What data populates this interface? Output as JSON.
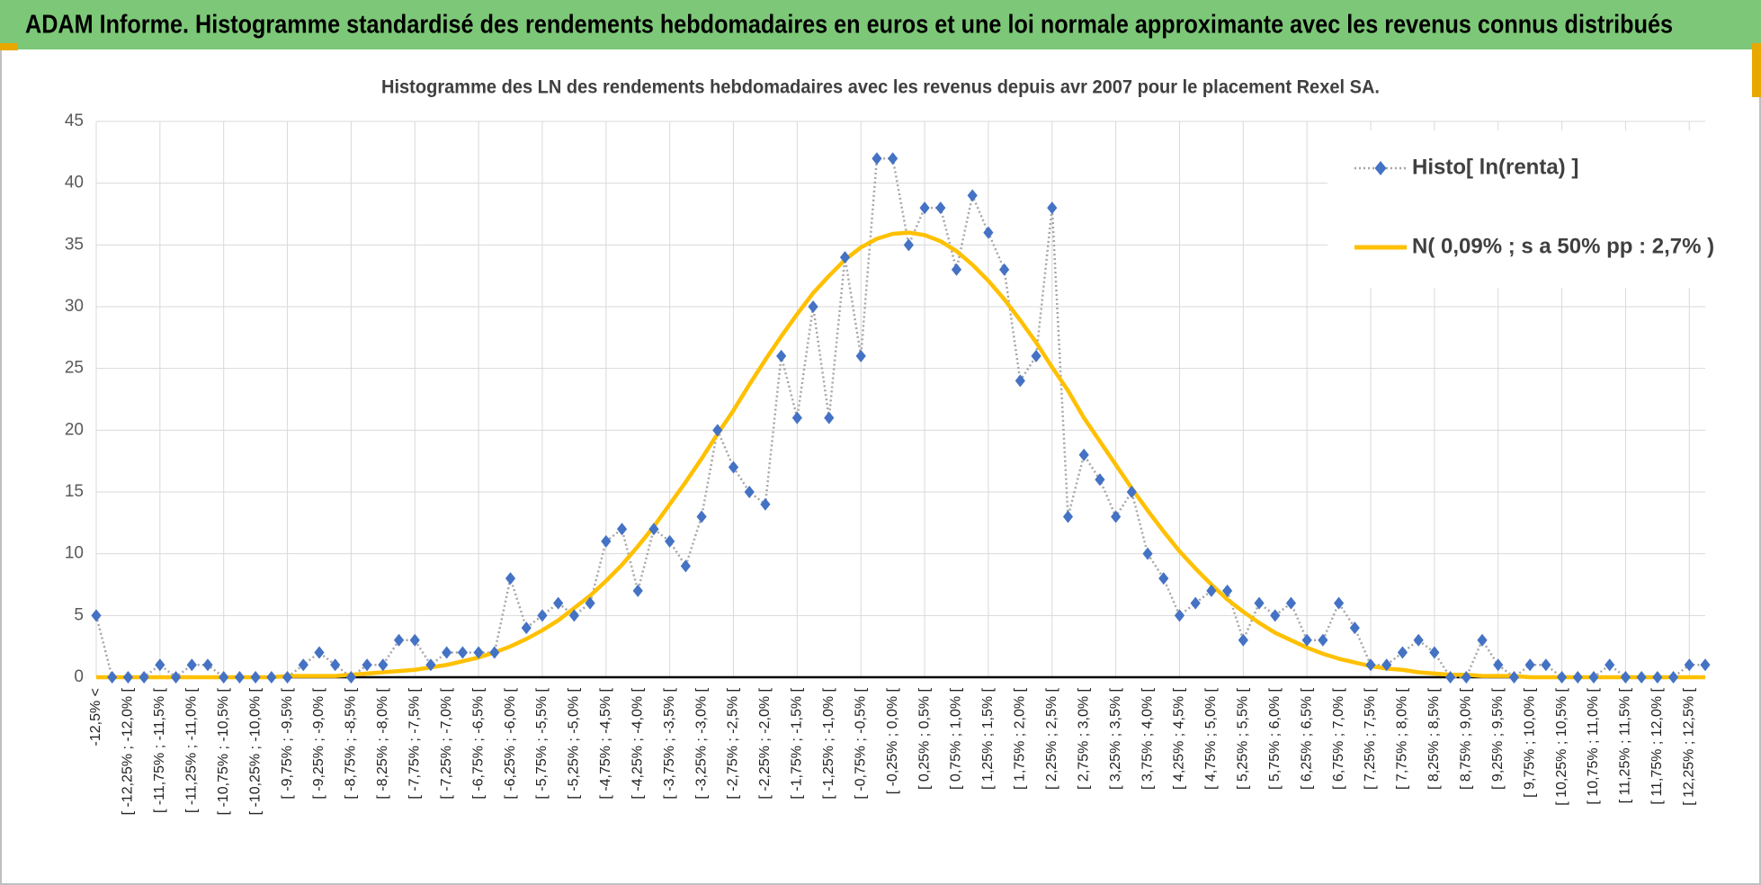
{
  "header": {
    "title": "ADAM Informe. Histogramme standardisé des rendements hebdomadaires en euros et une loi normale approximante avec les revenus connus distribués"
  },
  "chart_data": {
    "type": "line",
    "title": "Histogramme des LN des rendements hebdomadaires avec les revenus depuis avr 2007 pour le placement Rexel SA.",
    "categories": [
      "-12,5% <",
      null,
      "[ -12,25% ; -12,0% [",
      null,
      "[ -11,75% ; -11,5% [",
      null,
      "[ -11,25% ; -11,0% [",
      null,
      "[ -10,75% ; -10,5% [",
      null,
      "[ -10,25% ; -10,0% [",
      null,
      "[ -9,75% ; -9,5% [",
      null,
      "[ -9,25% ; -9,0% [",
      null,
      "[ -8,75% ; -8,5% [",
      null,
      "[ -8,25% ; -8,0% [",
      null,
      "[ -7,75% ; -7,5% [",
      null,
      "[ -7,25% ; -7,0% [",
      null,
      "[ -6,75% ; -6,5% [",
      null,
      "[ -6,25% ; -6,0% [",
      null,
      "[ -5,75% ; -5,5% [",
      null,
      "[ -5,25% ; -5,0% [",
      null,
      "[ -4,75% ; -4,5% [",
      null,
      "[ -4,25% ; -4,0% [",
      null,
      "[ -3,75% ; -3,5% [",
      null,
      "[ -3,25% ; -3,0% [",
      null,
      "[ -2,75% ; -2,5% [",
      null,
      "[ -2,25% ; -2,0% [",
      null,
      "[ -1,75% ; -1,5% [",
      null,
      "[ -1,25% ; -1,0% [",
      null,
      "[ -0,75% ; -0,5% [",
      null,
      "[ -0,25% ; 0,0% [",
      null,
      "[ 0,25% ; 0,5% [",
      null,
      "[ 0,75% ; 1,0% [",
      null,
      "[ 1,25% ; 1,5% [",
      null,
      "[ 1,75% ; 2,0% [",
      null,
      "[ 2,25% ; 2,5% [",
      null,
      "[ 2,75% ; 3,0% [",
      null,
      "[ 3,25% ; 3,5% [",
      null,
      "[ 3,75% ; 4,0% [",
      null,
      "[ 4,25% ; 4,5% [",
      null,
      "[ 4,75% ; 5,0% [",
      null,
      "[ 5,25% ; 5,5% [",
      null,
      "[ 5,75% ; 6,0% [",
      null,
      "[ 6,25% ; 6,5% [",
      null,
      "[ 6,75% ; 7,0% [",
      null,
      "[ 7,25% ; 7,5% [",
      null,
      "[ 7,75% ; 8,0% [",
      null,
      "[ 8,25% ; 8,5% [",
      null,
      "[ 8,75% ; 9,0% [",
      null,
      "[ 9,25% ; 9,5% [",
      null,
      "[ 9,75% ; 10,0% [",
      null,
      "[ 10,25% ; 10,5% [",
      null,
      "[ 10,75% ; 11,0% [",
      null,
      "[ 11,25% ; 11,5% [",
      null,
      "[ 11,75% ; 12,0% [",
      null,
      "[ 12,25% ; 12,5% [",
      null
    ],
    "series": [
      {
        "name": "Histo[ ln(renta) ]",
        "color": "#4472c4",
        "values": [
          5,
          0,
          0,
          0,
          1,
          0,
          1,
          1,
          0,
          0,
          0,
          0,
          0,
          1,
          2,
          1,
          0,
          1,
          1,
          3,
          3,
          1,
          2,
          2,
          2,
          2,
          8,
          4,
          5,
          6,
          5,
          6,
          11,
          12,
          7,
          12,
          11,
          9,
          13,
          20,
          17,
          15,
          14,
          26,
          21,
          30,
          21,
          34,
          26,
          42,
          42,
          35,
          38,
          38,
          33,
          39,
          36,
          33,
          24,
          26,
          38,
          13,
          18,
          16,
          13,
          15,
          10,
          8,
          5,
          6,
          7,
          7,
          3,
          6,
          5,
          6,
          3,
          3,
          6,
          4,
          1,
          1,
          2,
          3,
          2,
          0,
          0,
          3,
          1,
          0,
          1,
          1,
          0,
          0,
          0,
          1,
          0,
          0,
          0,
          0,
          1,
          1
        ]
      },
      {
        "name": "N( 0,09% ; s a 50% pp : 2,7% )",
        "color": "#ffc000",
        "values": [
          0,
          0,
          0,
          0,
          0,
          0,
          0,
          0,
          0,
          0,
          0,
          0,
          0.1,
          0.1,
          0.1,
          0.1,
          0.2,
          0.3,
          0.4,
          0.5,
          0.6,
          0.8,
          1.0,
          1.3,
          1.6,
          2.0,
          2.5,
          3.1,
          3.8,
          4.6,
          5.6,
          6.6,
          7.8,
          9.1,
          10.6,
          12.2,
          14.0,
          15.8,
          17.7,
          19.7,
          21.6,
          23.7,
          25.7,
          27.6,
          29.4,
          31.1,
          32.5,
          33.8,
          34.8,
          35.5,
          35.9,
          36.0,
          35.8,
          35.3,
          34.5,
          33.4,
          32.1,
          30.6,
          28.9,
          27.1,
          25.1,
          23.2,
          21.0,
          19.1,
          17.2,
          15.3,
          13.5,
          11.8,
          10.2,
          8.8,
          7.5,
          6.3,
          5.3,
          4.4,
          3.6,
          3.0,
          2.4,
          1.9,
          1.5,
          1.2,
          0.9,
          0.7,
          0.6,
          0.4,
          0.3,
          0.2,
          0.2,
          0.1,
          0.1,
          0.1,
          0,
          0,
          0,
          0,
          0,
          0,
          0,
          0,
          0,
          0,
          0,
          0
        ]
      }
    ],
    "ylim": [
      0,
      45
    ],
    "yticks": [
      0,
      5,
      10,
      15,
      20,
      25,
      30,
      35,
      40,
      45
    ],
    "grid": true,
    "legend": "top-right"
  }
}
